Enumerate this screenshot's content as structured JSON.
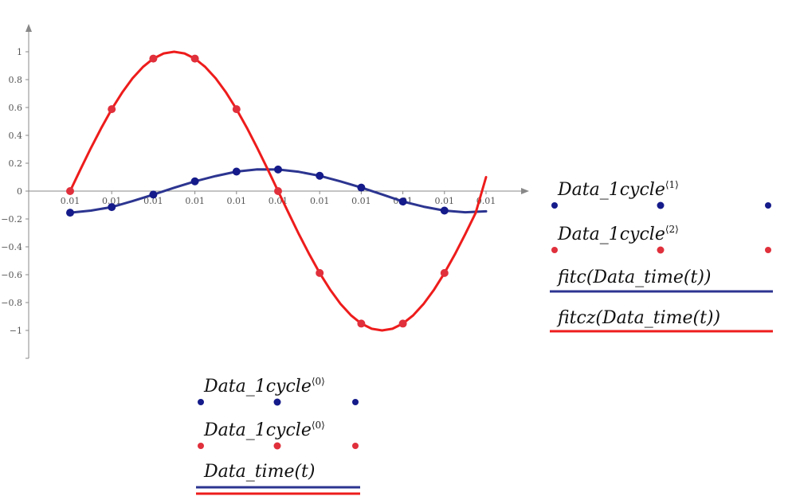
{
  "chart_data": {
    "type": "line",
    "xlim": [
      0,
      10.2
    ],
    "ylim": [
      -1.1,
      1.1
    ],
    "x_tick_labels": [
      "0.01",
      "0.01",
      "0.01",
      "0.01",
      "0.01",
      "0.01",
      "0.01",
      "0.01",
      "0.01",
      "0.01",
      "0.01"
    ],
    "y_ticks": [
      -1,
      -0.8,
      -0.6,
      -0.4,
      -0.2,
      0,
      0.2,
      0.4,
      0.6,
      0.8,
      1
    ],
    "y_tick_labels": [
      "−1",
      "−0.8",
      "−0.6",
      "−0.4",
      "−0.2",
      "0",
      "0.2",
      "0.4",
      "0.6",
      "0.8",
      "1"
    ],
    "series": [
      {
        "name": "Data_1cycle⟨1⟩",
        "kind": "points",
        "color": "#151b8a",
        "x": [
          0,
          1,
          2,
          3,
          4,
          5,
          6,
          7,
          8,
          9
        ],
        "y": [
          -0.155,
          -0.115,
          -0.025,
          0.07,
          0.14,
          0.155,
          0.11,
          0.025,
          -0.075,
          -0.14
        ]
      },
      {
        "name": "Data_1cycle⟨2⟩",
        "kind": "points",
        "color": "#e0303c",
        "x": [
          0,
          1,
          2,
          3,
          4,
          5,
          6,
          7,
          8,
          9
        ],
        "y": [
          0,
          0.588,
          0.951,
          0.951,
          0.588,
          0,
          -0.588,
          -0.951,
          -0.951,
          -0.588
        ]
      },
      {
        "name": "fitc(Data_time(t))",
        "kind": "line",
        "color": "#2c3590",
        "x": [
          0,
          0.5,
          1,
          1.5,
          2,
          2.5,
          3,
          3.5,
          4,
          4.5,
          5,
          5.5,
          6,
          6.5,
          7,
          7.5,
          8,
          8.5,
          9,
          9.5,
          10
        ],
        "y": [
          -0.155,
          -0.14,
          -0.115,
          -0.072,
          -0.025,
          0.024,
          0.07,
          0.108,
          0.14,
          0.156,
          0.155,
          0.138,
          0.11,
          0.07,
          0.025,
          -0.024,
          -0.075,
          -0.112,
          -0.14,
          -0.152,
          -0.145
        ]
      },
      {
        "name": "fitcz(Data_time(t))",
        "kind": "line",
        "color": "#ee1c1c",
        "x": [
          0,
          0.25,
          0.5,
          0.75,
          1,
          1.25,
          1.5,
          1.75,
          2,
          2.25,
          2.5,
          2.75,
          3,
          3.25,
          3.5,
          3.75,
          4,
          4.25,
          4.5,
          4.75,
          5,
          5.25,
          5.5,
          5.75,
          6,
          6.25,
          6.5,
          6.75,
          7,
          7.25,
          7.5,
          7.75,
          8,
          8.25,
          8.5,
          8.75,
          9,
          9.25,
          9.5,
          9.75,
          10
        ],
        "y": [
          0,
          0.156,
          0.309,
          0.454,
          0.588,
          0.707,
          0.809,
          0.891,
          0.951,
          0.988,
          1,
          0.988,
          0.951,
          0.891,
          0.809,
          0.707,
          0.588,
          0.454,
          0.309,
          0.156,
          0,
          -0.156,
          -0.309,
          -0.454,
          -0.588,
          -0.707,
          -0.809,
          -0.891,
          -0.951,
          -0.988,
          -1,
          -0.988,
          -0.951,
          -0.891,
          -0.809,
          -0.707,
          -0.588,
          -0.454,
          -0.309,
          -0.156,
          0.1
        ]
      }
    ],
    "y_legend": [
      {
        "name_main": "Data_1cycle",
        "name_sup": "⟨1⟩",
        "series": 0,
        "style": "points"
      },
      {
        "name_main": "Data_1cycle",
        "name_sup": "⟨2⟩",
        "series": 1,
        "style": "points"
      },
      {
        "name_main": "fitc(Data_time(t))",
        "name_sup": "",
        "series": 2,
        "style": "line"
      },
      {
        "name_main": "fitcz(Data_time(t))",
        "name_sup": "",
        "series": 3,
        "style": "line"
      }
    ],
    "x_legend": [
      {
        "name_main": "Data_1cycle",
        "name_sup": "⟨0⟩",
        "series": 0,
        "style": "points"
      },
      {
        "name_main": "Data_1cycle",
        "name_sup": "⟨0⟩",
        "series": 1,
        "style": "points"
      },
      {
        "name_main": "Data_time(t)",
        "name_sup": "",
        "series": [
          2,
          3
        ],
        "style": "line"
      }
    ]
  }
}
